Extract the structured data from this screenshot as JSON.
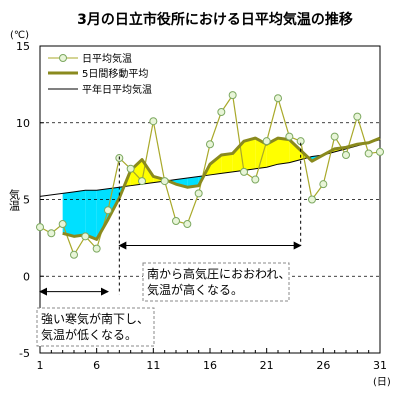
{
  "chart_data": {
    "type": "line",
    "title": "3月の日立市役所における日平均気温の推移",
    "ylabel": "気温",
    "y_unit": "(℃)",
    "x_unit": "(日)",
    "xlim": [
      1,
      31
    ],
    "ylim": [
      -5,
      15
    ],
    "y_ticks": [
      -5,
      0,
      5,
      10,
      15
    ],
    "x_ticks": [
      1,
      6,
      11,
      16,
      21,
      26,
      31
    ],
    "grid": "horizontal-dashed",
    "legend": "top-left",
    "x": [
      1,
      2,
      3,
      4,
      5,
      6,
      7,
      8,
      9,
      10,
      11,
      12,
      13,
      14,
      15,
      16,
      17,
      18,
      19,
      20,
      21,
      22,
      23,
      24,
      25,
      26,
      27,
      28,
      29,
      30,
      31
    ],
    "series": [
      {
        "name": "日平均気温",
        "color": "#a9a92a",
        "marker": "circle-light-green",
        "values": [
          3.2,
          2.8,
          3.4,
          1.4,
          2.6,
          1.8,
          4.3,
          7.7,
          7.0,
          6.2,
          10.1,
          6.2,
          3.6,
          3.4,
          5.4,
          8.6,
          10.7,
          11.8,
          6.8,
          6.3,
          8.8,
          11.6,
          9.1,
          8.8,
          5.0,
          6.0,
          9.1,
          7.9,
          10.4,
          8.0,
          8.1
        ]
      },
      {
        "name": "5日間移動平均",
        "color": "#8a8a1e",
        "values": [
          null,
          null,
          2.8,
          2.6,
          2.7,
          2.4,
          3.7,
          5.1,
          6.9,
          7.6,
          6.5,
          6.3,
          6.0,
          5.8,
          5.9,
          7.3,
          7.9,
          8.0,
          8.8,
          9.0,
          8.6,
          9.0,
          8.9,
          8.2,
          7.5,
          7.9,
          8.3,
          8.4,
          8.6,
          8.7,
          9.0
        ]
      },
      {
        "name": "平年日平均気温",
        "color": "#000000",
        "values": [
          5.2,
          5.3,
          5.4,
          5.5,
          5.6,
          5.6,
          5.7,
          5.8,
          5.9,
          6.0,
          6.1,
          6.2,
          6.3,
          6.4,
          6.5,
          6.6,
          6.7,
          6.8,
          6.9,
          7.0,
          7.1,
          7.3,
          7.4,
          7.6,
          7.8,
          7.9,
          8.1,
          8.3,
          8.5,
          8.7,
          8.9
        ]
      }
    ],
    "fills": {
      "above_normal_color": "#ffff00",
      "below_normal_color": "#00e0ff"
    },
    "annotations": [
      {
        "id": "warm",
        "lines": [
          "南から高気圧におおわれ、",
          "気温が高くなる。"
        ],
        "from_day": 8,
        "to_day": 24,
        "y": 2.0
      },
      {
        "id": "cold",
        "lines": [
          "強い寒気が南下し、",
          "気温が低くなる。"
        ],
        "from_day": 1,
        "to_day": 7,
        "y": -1.0
      }
    ]
  }
}
